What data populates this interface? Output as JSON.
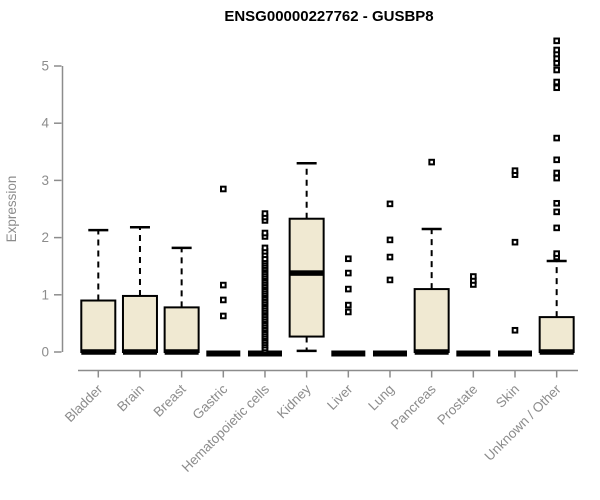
{
  "title": "ENSG00000227762 - GUSBP8",
  "colors": {
    "box_fill": "#F0E9D2",
    "box_edge": "#000000",
    "axis": "#8C8C8C",
    "title_text": "#000000",
    "background": "#FFFFFF"
  },
  "chart_data": {
    "type": "boxplot",
    "title": "ENSG00000227762 - GUSBP8",
    "xlabel": "",
    "ylabel": "Expression",
    "ylim": [
      0,
      5
    ],
    "yticks": [
      0,
      1,
      2,
      3,
      4,
      5
    ],
    "grid": false,
    "legend": "none",
    "categories": [
      {
        "label": "Bladder",
        "q1": 0,
        "median": 0,
        "q3": 0.9,
        "whisker_low": 0,
        "whisker_high": 2.13,
        "outliers": []
      },
      {
        "label": "Brain",
        "q1": 0,
        "median": 0,
        "q3": 0.98,
        "whisker_low": 0,
        "whisker_high": 2.18,
        "outliers": []
      },
      {
        "label": "Breast",
        "q1": 0,
        "median": 0,
        "q3": 0.78,
        "whisker_low": 0,
        "whisker_high": 1.82,
        "outliers": []
      },
      {
        "label": "Gastric",
        "q1": 0,
        "median": 0,
        "q3": 0,
        "whisker_low": 0,
        "whisker_high": 0,
        "outliers": [
          0.63,
          0.91,
          1.17,
          2.85
        ]
      },
      {
        "label": "Hematopoietic cells",
        "q1": 0,
        "median": 0,
        "q3": 0,
        "whisker_low": 0,
        "whisker_high": 0,
        "outliers": [
          0.03,
          0.07,
          0.12,
          0.16,
          0.2,
          0.24,
          0.27,
          0.31,
          0.35,
          0.39,
          0.42,
          0.46,
          0.5,
          0.54,
          0.57,
          0.61,
          0.65,
          0.69,
          0.72,
          0.76,
          0.8,
          0.84,
          0.87,
          0.91,
          0.95,
          0.99,
          1.02,
          1.06,
          1.1,
          1.14,
          1.17,
          1.21,
          1.25,
          1.29,
          1.32,
          1.36,
          1.4,
          1.44,
          1.47,
          1.51,
          1.55,
          1.59,
          1.63,
          1.7,
          1.76,
          1.82,
          2.02,
          2.08,
          2.3,
          2.36,
          2.42
        ]
      },
      {
        "label": "Kidney",
        "q1": 0.27,
        "median": 1.38,
        "q3": 2.33,
        "whisker_low": 0.02,
        "whisker_high": 3.3,
        "outliers": []
      },
      {
        "label": "Liver",
        "q1": 0,
        "median": 0,
        "q3": 0,
        "whisker_low": 0,
        "whisker_high": 0,
        "outliers": [
          0.7,
          0.82,
          1.1,
          1.38,
          1.63
        ]
      },
      {
        "label": "Lung",
        "q1": 0,
        "median": 0,
        "q3": 0,
        "whisker_low": 0,
        "whisker_high": 0,
        "outliers": [
          1.26,
          1.66,
          1.96,
          2.59
        ]
      },
      {
        "label": "Pancreas",
        "q1": 0,
        "median": 0,
        "q3": 1.1,
        "whisker_low": 0,
        "whisker_high": 2.15,
        "outliers": [
          3.32
        ]
      },
      {
        "label": "Prostate",
        "q1": 0,
        "median": 0,
        "q3": 0,
        "whisker_low": 0,
        "whisker_high": 0,
        "outliers": [
          1.18,
          1.25,
          1.32
        ]
      },
      {
        "label": "Skin",
        "q1": 0,
        "median": 0,
        "q3": 0,
        "whisker_low": 0,
        "whisker_high": 0,
        "outliers": [
          0.38,
          1.92,
          3.1,
          3.17
        ]
      },
      {
        "label": "Unknown / Other",
        "q1": 0,
        "median": 0,
        "q3": 0.61,
        "whisker_low": 0,
        "whisker_high": 1.59,
        "outliers": [
          1.66,
          1.72,
          2.17,
          2.45,
          2.6,
          3.04,
          3.13,
          3.36,
          3.74,
          4.62,
          4.72,
          4.93,
          5.05,
          5.13,
          5.21,
          5.28,
          5.44
        ]
      }
    ]
  }
}
